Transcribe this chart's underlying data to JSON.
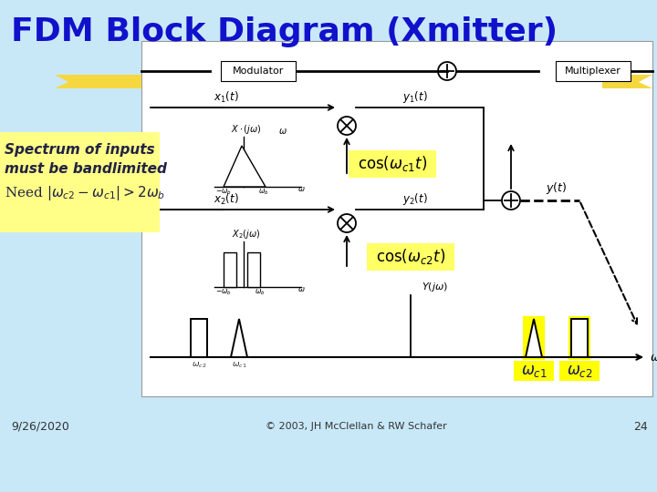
{
  "title": "FDM Block Diagram (Xmitter)",
  "title_color": "#1111CC",
  "bg_color": "#C8E8F8",
  "diagram_bg": "#FFFFFF",
  "yellow_panel_bg": "#FFFF88",
  "yellow_cos_bg": "#FFFF66",
  "yellow_highlight_bg": "#FFFF00",
  "footer_date": "9/26/2020",
  "footer_copy": "© 2003, JH McClellan & RW Schafer",
  "footer_page": "24",
  "spectrum_text1": "Spectrum of inputs",
  "spectrum_text2": "must be bandlimited"
}
